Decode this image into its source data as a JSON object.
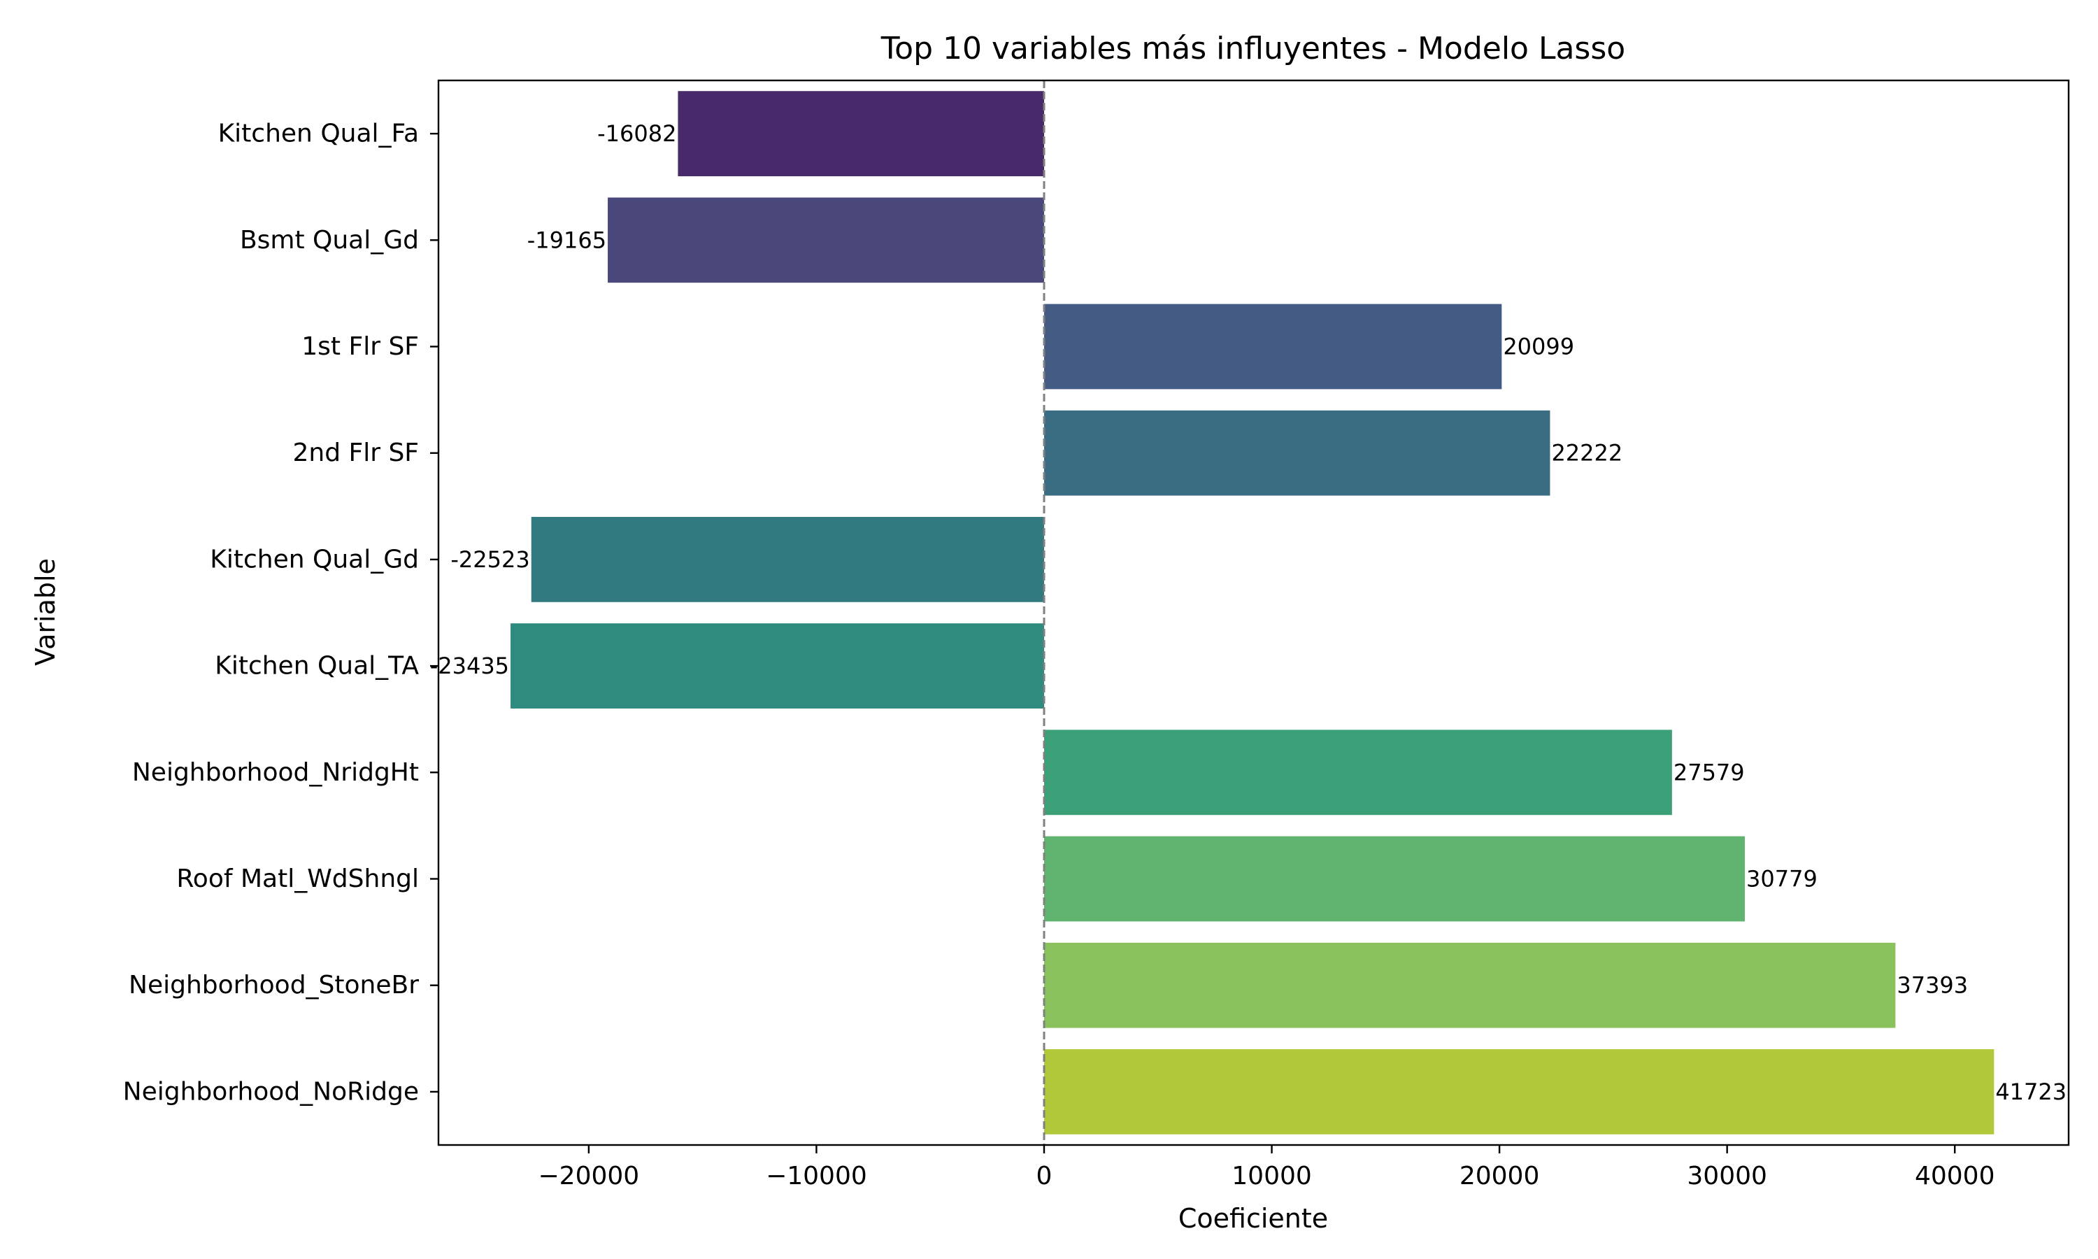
{
  "chart_data": {
    "type": "bar",
    "orientation": "horizontal",
    "title": "Top 10 variables más influyentes - Modelo Lasso",
    "xlabel": "Coeficiente",
    "ylabel": "Variable",
    "categories": [
      "Kitchen Qual_Fa",
      "Bsmt Qual_Gd",
      "1st Flr SF",
      "2nd Flr SF",
      "Kitchen Qual_Gd",
      "Kitchen Qual_TA",
      "Neighborhood_NridgHt",
      "Roof Matl_WdShngl",
      "Neighborhood_StoneBr",
      "Neighborhood_NoRidge"
    ],
    "values": [
      -16082,
      -19165,
      20099,
      22222,
      -22523,
      -23435,
      27579,
      30779,
      37393,
      41723
    ],
    "data_labels": [
      "-16082",
      "-19165",
      "20099",
      "22222",
      "-22523",
      "-23435",
      "27579",
      "30779",
      "37393",
      "41723"
    ],
    "colors": [
      "#482a6a",
      "#4a487b",
      "#445c84",
      "#3a6d82",
      "#317a80",
      "#2e8b7e",
      "#3ba078",
      "#60b46f",
      "#89c25d",
      "#b2c83b"
    ],
    "xlim": [
      -26600,
      45000
    ],
    "xticks": [
      -20000,
      -10000,
      0,
      10000,
      20000,
      30000,
      40000
    ],
    "xtick_labels": [
      "−20000",
      "−10000",
      "0",
      "10000",
      "20000",
      "30000",
      "40000"
    ],
    "zero_line": {
      "value": 0,
      "style": "dashed",
      "color": "#808080"
    },
    "grid": false,
    "legend": "none"
  }
}
